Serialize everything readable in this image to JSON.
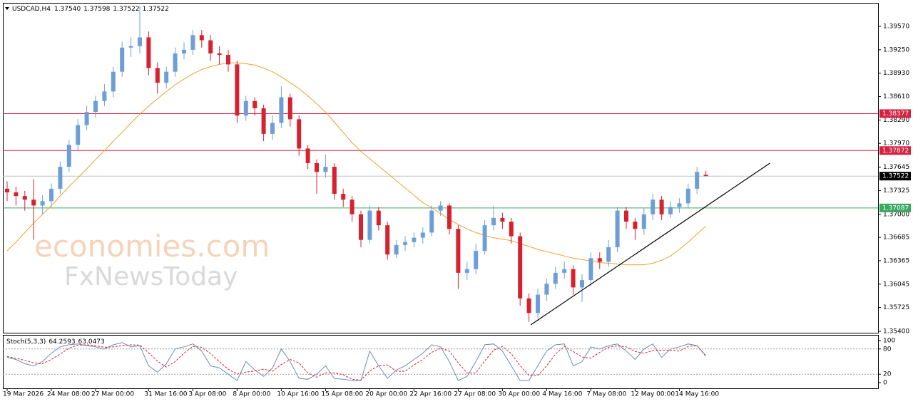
{
  "chart_data": [
    {
      "type": "candlestick",
      "title": "USDCAD,H4",
      "header_values": [
        "1.37540",
        "1.37598",
        "1.37522",
        "1.37522"
      ],
      "watermark": [
        "economies.com",
        "FxNewsToday"
      ],
      "categories": [
        "19 Mar 2026",
        null,
        null,
        null,
        null,
        "24 Mar 08:00",
        null,
        null,
        null,
        null,
        "27 Mar 00:00",
        null,
        null,
        null,
        null,
        null,
        "31 Mar 16:00",
        null,
        null,
        null,
        null,
        "3 Apr 08:00",
        null,
        null,
        null,
        null,
        "8 Apr 00:00",
        null,
        null,
        null,
        null,
        "10 Apr 16:00",
        null,
        null,
        null,
        null,
        "15 Apr 08:00",
        null,
        null,
        null,
        null,
        "20 Apr 00:00",
        null,
        null,
        null,
        null,
        "22 Apr 16:00",
        null,
        null,
        null,
        null,
        "27 Apr 08:00",
        null,
        null,
        null,
        null,
        "30 Apr 00:00",
        null,
        null,
        null,
        null,
        "4 May 16:00",
        null,
        null,
        null,
        null,
        "7 May 08:00",
        null,
        null,
        null,
        null,
        "12 May 00:00",
        null,
        null,
        null,
        null,
        "14 May 16:00",
        null,
        null,
        null
      ],
      "open": [
        1.3735,
        1.373,
        1.3725,
        1.372,
        1.3712,
        1.3718,
        1.3735,
        1.3765,
        1.3795,
        1.3822,
        1.384,
        1.3855,
        1.3868,
        1.3895,
        1.3928,
        1.393,
        1.3942,
        1.39,
        1.388,
        1.3895,
        1.392,
        1.3925,
        1.3945,
        1.3938,
        1.392,
        1.3918,
        1.3905,
        1.3835,
        1.3855,
        1.3845,
        1.381,
        1.3825,
        1.386,
        1.383,
        1.379,
        1.377,
        1.3758,
        1.3765,
        1.3728,
        1.372,
        1.37,
        1.3665,
        1.3705,
        1.3685,
        1.3645,
        1.3658,
        1.3662,
        1.3668,
        1.3675,
        1.3705,
        1.3712,
        1.368,
        1.362,
        1.3625,
        1.365,
        1.3685,
        1.3695,
        1.369,
        1.367,
        1.3585,
        1.3565,
        1.359,
        1.3605,
        1.362,
        1.3625,
        1.36,
        1.361,
        1.364,
        1.3635,
        1.3655,
        1.3705,
        1.369,
        1.368,
        1.37,
        1.372,
        1.37,
        1.371,
        1.3715,
        1.3735,
        1.3754
      ],
      "high": [
        1.3745,
        1.3738,
        1.3732,
        1.3748,
        1.3726,
        1.3742,
        1.3772,
        1.3802,
        1.383,
        1.3848,
        1.3862,
        1.3878,
        1.3902,
        1.3936,
        1.3942,
        1.3985,
        1.395,
        1.3908,
        1.3902,
        1.3928,
        1.3935,
        1.3952,
        1.3952,
        1.3945,
        1.393,
        1.3925,
        1.391,
        1.3862,
        1.386,
        1.385,
        1.3835,
        1.3875,
        1.3865,
        1.3835,
        1.3795,
        1.3775,
        1.3782,
        1.377,
        1.3735,
        1.3725,
        1.3705,
        1.3712,
        1.371,
        1.369,
        1.3665,
        1.367,
        1.3675,
        1.3682,
        1.3712,
        1.3718,
        1.3715,
        1.3685,
        1.3635,
        1.366,
        1.3692,
        1.3712,
        1.3702,
        1.3695,
        1.3675,
        1.3592,
        1.3598,
        1.3612,
        1.3628,
        1.3635,
        1.363,
        1.3618,
        1.3648,
        1.3648,
        1.3665,
        1.371,
        1.371,
        1.3695,
        1.3708,
        1.3728,
        1.3725,
        1.3718,
        1.3722,
        1.3742,
        1.3765,
        1.37598
      ],
      "low": [
        1.3718,
        1.3712,
        1.3705,
        1.3665,
        1.37,
        1.371,
        1.3728,
        1.3758,
        1.3788,
        1.3815,
        1.3832,
        1.3848,
        1.386,
        1.3888,
        1.3915,
        1.392,
        1.389,
        1.3865,
        1.3872,
        1.3888,
        1.3912,
        1.3918,
        1.3928,
        1.391,
        1.3905,
        1.3895,
        1.3825,
        1.3828,
        1.3835,
        1.38,
        1.3802,
        1.3818,
        1.382,
        1.378,
        1.3762,
        1.3728,
        1.375,
        1.372,
        1.371,
        1.369,
        1.3655,
        1.366,
        1.3678,
        1.3638,
        1.364,
        1.365,
        1.3655,
        1.366,
        1.367,
        1.3698,
        1.3672,
        1.3598,
        1.361,
        1.3618,
        1.3645,
        1.3678,
        1.368,
        1.366,
        1.3575,
        1.3553,
        1.3558,
        1.3582,
        1.3598,
        1.3612,
        1.359,
        1.358,
        1.3602,
        1.3625,
        1.3628,
        1.3648,
        1.368,
        1.3665,
        1.3672,
        1.3692,
        1.3692,
        1.3695,
        1.3702,
        1.3708,
        1.3728,
        1.37522
      ],
      "close": [
        1.373,
        1.3725,
        1.372,
        1.3712,
        1.3718,
        1.3735,
        1.3765,
        1.3795,
        1.3822,
        1.384,
        1.3855,
        1.3868,
        1.3895,
        1.3928,
        1.393,
        1.3942,
        1.39,
        1.388,
        1.3895,
        1.392,
        1.3925,
        1.3945,
        1.3938,
        1.392,
        1.3918,
        1.3905,
        1.3835,
        1.3855,
        1.3845,
        1.381,
        1.3825,
        1.386,
        1.383,
        1.379,
        1.377,
        1.3758,
        1.3765,
        1.3728,
        1.372,
        1.37,
        1.3665,
        1.3705,
        1.3685,
        1.3645,
        1.3658,
        1.3662,
        1.3668,
        1.3675,
        1.3705,
        1.3712,
        1.368,
        1.362,
        1.3625,
        1.365,
        1.3685,
        1.3695,
        1.369,
        1.367,
        1.3585,
        1.3565,
        1.359,
        1.3605,
        1.362,
        1.3625,
        1.36,
        1.361,
        1.364,
        1.3635,
        1.3655,
        1.3705,
        1.369,
        1.368,
        1.37,
        1.372,
        1.37,
        1.371,
        1.3715,
        1.3735,
        1.3758,
        1.37522
      ],
      "up_color": "#6d9fd6",
      "down_color": "#d7212e",
      "ma": {
        "color": "#f0a030",
        "values": [
          1.365,
          1.3662,
          1.3675,
          1.3688,
          1.37,
          1.3712,
          1.3725,
          1.3738,
          1.375,
          1.3762,
          1.3775,
          1.3787,
          1.38,
          1.3812,
          1.3825,
          1.3837,
          1.3848,
          1.3858,
          1.3868,
          1.3877,
          1.3885,
          1.3892,
          1.3898,
          1.3902,
          1.3905,
          1.3907,
          1.3907,
          1.3906,
          1.3904,
          1.39,
          1.3895,
          1.3888,
          1.388,
          1.3872,
          1.3862,
          1.3851,
          1.384,
          1.3826,
          1.3812,
          1.3798,
          1.3786,
          1.3776,
          1.3766,
          1.3756,
          1.3746,
          1.3736,
          1.3726,
          1.3716,
          1.3709,
          1.3701,
          1.3693,
          1.3686,
          1.368,
          1.3675,
          1.3671,
          1.3668,
          1.3666,
          1.3664,
          1.366,
          1.3656,
          1.3652,
          1.3649,
          1.3646,
          1.3643,
          1.364,
          1.3638,
          1.3636,
          1.3634,
          1.3633,
          1.3632,
          1.3631,
          1.3631,
          1.3631,
          1.3633,
          1.3637,
          1.3643,
          1.3652,
          1.3662,
          1.3673,
          1.3684
        ]
      },
      "trendline": {
        "color": "#000000",
        "x": [
          59.2,
          86.24
        ],
        "values": [
          1.35488,
          1.37699
        ]
      },
      "levels": [
        {
          "value": 1.38377,
          "label": "1.38377",
          "color": "#d7213f"
        },
        {
          "value": 1.37872,
          "label": "1.37872",
          "color": "#d7213f"
        },
        {
          "value": 1.37522,
          "label": "1.37522",
          "color": "#000000",
          "line_color": "#c0c0c0"
        },
        {
          "value": 1.37087,
          "label": "1.37087",
          "color": "#3aa860"
        }
      ],
      "ylim": [
        1.3538,
        1.39892
      ],
      "yticks": [
        {
          "value": 1.3957,
          "label": "1.39570"
        },
        {
          "value": 1.3925,
          "label": "1.39250"
        },
        {
          "value": 1.3893,
          "label": "1.38930"
        },
        {
          "value": 1.3861,
          "label": "1.38610"
        },
        {
          "value": 1.3829,
          "label": "1.38290"
        },
        {
          "value": 1.3797,
          "label": "1.37970"
        },
        {
          "value": 1.37645,
          "label": "1.37645"
        },
        {
          "value": 1.37325,
          "label": "1.37325"
        },
        {
          "value": 1.37,
          "label": "1.37000"
        },
        {
          "value": 1.36685,
          "label": "1.36685"
        },
        {
          "value": 1.36365,
          "label": "1.36365"
        },
        {
          "value": 1.36045,
          "label": "1.36045"
        },
        {
          "value": 1.35725,
          "label": "1.35725"
        },
        {
          "value": 1.354,
          "label": "1.35400"
        }
      ]
    },
    {
      "type": "line",
      "title": "Stoch(5,3,3)",
      "series": [
        {
          "color": "#6a8fb0",
          "dash": false,
          "values": [
            60,
            55,
            45,
            40,
            50,
            70,
            85,
            90,
            92,
            88,
            85,
            80,
            90,
            95,
            85,
            88,
            40,
            25,
            45,
            80,
            85,
            92,
            75,
            40,
            35,
            20,
            5,
            50,
            30,
            15,
            35,
            80,
            50,
            10,
            8,
            20,
            40,
            10,
            8,
            5,
            5,
            75,
            40,
            10,
            30,
            40,
            55,
            70,
            90,
            85,
            50,
            5,
            15,
            50,
            90,
            92,
            75,
            40,
            5,
            5,
            40,
            75,
            90,
            92,
            40,
            50,
            85,
            80,
            88,
            92,
            75,
            55,
            80,
            92,
            60,
            80,
            85,
            92,
            88,
            64.2593
          ]
        },
        {
          "color": "#d7212e",
          "dash": true,
          "values": [
            62,
            58,
            53,
            47,
            45,
            55,
            68,
            82,
            89,
            90,
            88,
            84,
            85,
            88,
            90,
            89,
            71,
            51,
            37,
            50,
            70,
            86,
            84,
            69,
            50,
            32,
            20,
            25,
            28,
            32,
            27,
            43,
            55,
            47,
            23,
            13,
            23,
            23,
            19,
            8,
            6,
            28,
            40,
            42,
            27,
            27,
            42,
            55,
            72,
            82,
            75,
            47,
            23,
            23,
            52,
            77,
            86,
            69,
            40,
            17,
            17,
            40,
            68,
            86,
            74,
            61,
            58,
            72,
            84,
            87,
            85,
            74,
            70,
            76,
            77,
            77,
            75,
            86,
            88,
            63.0473
          ]
        }
      ],
      "levels": [
        80,
        20
      ],
      "ylim": [
        -13.5,
        113.5
      ],
      "yticks": [
        100,
        80,
        20,
        0
      ]
    }
  ]
}
